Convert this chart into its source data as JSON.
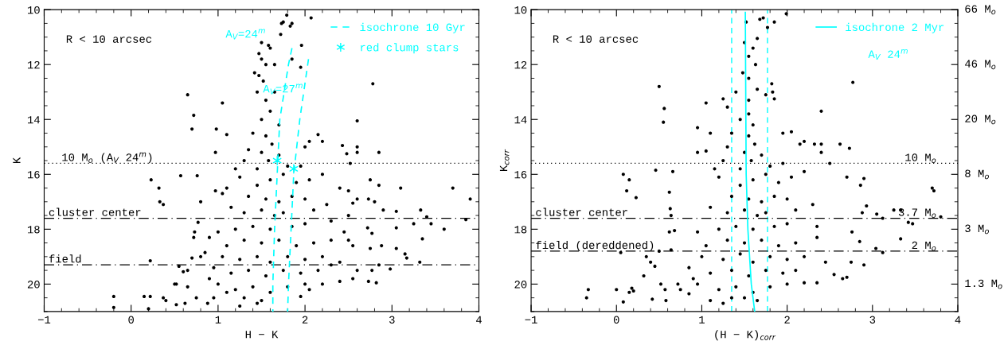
{
  "chart_data": [
    {
      "type": "scatter",
      "xlabel": "H − K",
      "ylabel": "K",
      "xlim": [
        -1,
        4
      ],
      "ylim": [
        21,
        10
      ],
      "xticks": [
        -1,
        0,
        1,
        2,
        3,
        4
      ],
      "yticks": [
        10,
        12,
        14,
        16,
        18,
        20
      ],
      "grid": false,
      "legend": "top right",
      "series": [
        {
          "type": "scatter",
          "color": "#000000",
          "marker": "circle",
          "x": [
            2.07,
            1.75,
            1.73,
            1.85,
            1.79,
            1.83,
            1.72,
            1.5,
            1.58,
            1.96,
            1.6,
            1.85,
            1.95,
            1.47,
            1.5,
            1.55,
            1.65,
            1.42,
            1.47,
            1.52,
            0.65,
            0.72,
            0.7,
            1.05,
            0.98,
            1.1,
            0.97,
            2.78,
            2.6,
            2.6,
            2.6,
            2.85,
            2.43,
            2.48,
            2.52,
            2.0,
            2.05,
            2.15,
            2.2,
            -0.2,
            -0.2,
            0.15,
            0.22,
            0.2,
            0.37,
            0.4,
            0.52,
            0.62,
            0.22,
            0.23,
            0.32,
            0.33,
            0.37,
            0.57,
            0.76,
            0.5,
            0.52,
            0.55,
            0.6,
            0.65,
            0.65,
            0.7,
            0.75,
            0.8,
            0.77,
            0.8,
            0.9,
            0.73,
            0.72,
            0.85,
            0.88,
            0.95,
            0.97,
            1.05,
            1.1,
            3.7,
            3.9,
            3.85,
            3.6,
            3.45,
            3.35,
            3.4,
            3.33,
            3.25,
            3.1,
            3.05,
            3.05,
            3.05,
            2.98,
            3.15,
            3.17,
            3.32,
            2.75,
            2.85,
            2.73,
            2.8,
            2.9,
            2.72,
            2.77,
            2.75,
            2.88,
            2.77,
            2.73,
            2.82,
            2.85,
            2.6,
            2.5,
            2.4,
            2.55,
            2.5,
            2.45,
            2.5,
            2.55,
            2.6,
            2.55,
            2.4,
            2.3,
            2.2,
            2.05,
            1.95,
            1.45,
            1.55,
            1.65,
            1.6,
            1.5,
            1.7,
            1.4,
            1.55,
            1.62,
            1.5,
            1.35,
            1.7,
            1.58,
            1.45,
            1.3,
            1.2,
            1.8,
            1.95,
            1.75,
            1.6,
            1.45,
            1.25,
            1.9,
            2.05,
            2.2,
            1.35,
            1.55,
            1.7,
            1.85,
            2.0,
            1.5,
            1.65,
            1.75,
            1.3,
            1.15,
            2.1,
            2.25,
            1.4,
            1.6,
            1.85,
            2.0,
            2.3,
            1.2,
            1.0,
            1.1,
            1.3,
            1.5,
            1.7,
            1.9,
            2.1,
            2.3,
            1.05,
            1.25,
            1.45,
            1.6,
            1.8,
            2.0,
            2.2,
            2.4,
            0.95,
            1.15,
            1.35,
            1.55,
            1.75,
            1.95,
            2.15,
            1.0,
            1.2,
            1.4,
            1.6,
            1.8,
            2.0,
            1.3,
            1.5,
            1.45,
            1.25,
            1.1,
            0.9
          ],
          "values": [
            10.3,
            10.45,
            10.5,
            10.5,
            10.2,
            10.6,
            10.9,
            11.2,
            11.3,
            11.3,
            11.4,
            11.8,
            12.1,
            11.6,
            11.8,
            12.0,
            12.0,
            12.3,
            12.4,
            12.6,
            13.1,
            13.85,
            14.35,
            13.4,
            14.35,
            14.55,
            15.2,
            12.7,
            14.05,
            15.0,
            15.2,
            15.2,
            14.95,
            15.25,
            15.6,
            15.0,
            14.8,
            14.55,
            14.8,
            20.45,
            20.85,
            20.45,
            20.45,
            20.9,
            20.5,
            20.6,
            20.75,
            20.7,
            19.15,
            16.2,
            16.5,
            17.0,
            17.1,
            16.05,
            16.05,
            20.0,
            20.0,
            19.35,
            19.55,
            19.5,
            20.1,
            19.05,
            20.5,
            19.0,
            17.75,
            17.0,
            18.3,
            18.1,
            18.3,
            18.85,
            20.7,
            20.5,
            16.6,
            16.7,
            16.5,
            16.5,
            16.9,
            17.65,
            18.0,
            17.8,
            18.35,
            17.55,
            17.3,
            17.8,
            16.5,
            17.95,
            17.35,
            18.7,
            19.45,
            18.9,
            19.05,
            19.2,
            16.2,
            16.4,
            16.9,
            17.0,
            17.3,
            17.95,
            18.15,
            18.7,
            18.6,
            19.5,
            19.9,
            19.95,
            19.3,
            16.9,
            16.6,
            16.5,
            17.05,
            17.5,
            18.1,
            18.4,
            18.6,
            19.5,
            19.8,
            19.9,
            19.3,
            20.0,
            20.2,
            20.45,
            13.0,
            13.3,
            13.0,
            13.7,
            14.0,
            14.2,
            14.5,
            14.6,
            14.9,
            15.2,
            15.1,
            15.3,
            15.5,
            15.8,
            15.5,
            15.8,
            15.7,
            15.7,
            16.0,
            16.2,
            16.4,
            16.1,
            16.3,
            16.2,
            16.0,
            16.8,
            16.9,
            17.0,
            16.8,
            16.9,
            17.3,
            17.5,
            17.4,
            17.4,
            17.2,
            17.3,
            17.1,
            17.9,
            18.0,
            17.9,
            17.8,
            17.7,
            18.0,
            18.1,
            18.6,
            18.4,
            18.5,
            18.4,
            18.6,
            18.5,
            18.4,
            19.0,
            19.1,
            19.0,
            19.2,
            19.0,
            19.1,
            19.0,
            19.2,
            19.4,
            19.6,
            19.5,
            19.7,
            19.5,
            19.6,
            19.5,
            20.0,
            20.2,
            20.1,
            20.3,
            20.1,
            20.0,
            20.5,
            20.6,
            20.7,
            20.8,
            20.3,
            19.8
          ]
        },
        {
          "type": "line",
          "name": "isochrone 10 Gyr",
          "color": "#00ffff",
          "line_style": "dashed",
          "x": [
            1.85,
            1.81,
            1.71,
            1.68,
            1.65,
            1.63,
            1.63
          ],
          "values": [
            11.4,
            12,
            14,
            16,
            18,
            20,
            21
          ]
        },
        {
          "type": "line",
          "color": "#00ffff",
          "line_style": "dashed",
          "x": [
            2.04,
            1.94,
            1.87,
            1.84,
            1.81,
            1.8
          ],
          "values": [
            11.8,
            14,
            16,
            18,
            20,
            21
          ]
        },
        {
          "type": "scatter",
          "name": "red clump stars",
          "color": "#00ffff",
          "marker": "cross",
          "x": [
            1.68,
            1.87
          ],
          "values": [
            15.5,
            15.8
          ]
        }
      ],
      "ref_lines": [
        {
          "axis": "y",
          "value": 15.6,
          "color": "#000000",
          "line_style": "dotted"
        },
        {
          "axis": "y",
          "value": 17.6,
          "color": "#000000",
          "line_style": "dashdot"
        },
        {
          "axis": "y",
          "value": 19.3,
          "color": "#000000",
          "line_style": "dashdot"
        }
      ],
      "annotations": [
        "R < 10 arcsec",
        {
          "text": "A$_{V}$=24$^{m}$",
          "x": 1.55,
          "y": 11.1
        },
        {
          "text": "A$_{V}$=27$^{m}$",
          "x": 1.98,
          "y": 13.1
        },
        {
          "text": "10 M$_{o}$ (A$_{V}$ 24$^{m}$)",
          "x": -0.8,
          "y": 15.6
        },
        {
          "text": "cluster center",
          "x": -0.95,
          "y": 17.6
        },
        {
          "text": "field",
          "x": -0.95,
          "y": 19.3
        }
      ]
    },
    {
      "type": "scatter",
      "xlabel": "(H − K)$_{corr}$",
      "ylabel": "K$_{corr}$",
      "xlim": [
        -1,
        4
      ],
      "ylim": [
        21,
        10
      ],
      "xticks": [
        -1,
        0,
        1,
        2,
        3,
        4
      ],
      "yticks": [
        10,
        12,
        14,
        16,
        18,
        20
      ],
      "grid": false,
      "legend": "top right",
      "series": [
        {
          "type": "scatter",
          "color": "#000000",
          "marker": "circle",
          "x": [
            1.99,
            1.85,
            1.72,
            1.68,
            1.77,
            1.52,
            1.65,
            1.5,
            1.55,
            1.6,
            1.48,
            1.55,
            1.63,
            1.82,
            1.83,
            1.75,
            1.85,
            2.77,
            0.5,
            0.56,
            0.55,
            1.05,
            1.1,
            0.95,
            0.95,
            1.05,
            1.25,
            1.3,
            2.4,
            2.05,
            1.95,
            2.2,
            2.15,
            2.32,
            2.4,
            2.4,
            2.62,
            2.73,
            2.5,
            0.08,
            0.15,
            0.12,
            0.23,
            0.46,
            0.66,
            0.62,
            0.63,
            0.64,
            3.7,
            3.72,
            3.8,
            3.47,
            3.42,
            3.33,
            3.25,
            3.33,
            3.12,
            3.05,
            3.04,
            3.12,
            2.93,
            2.9,
            2.86,
            2.7,
            2.88,
            2.76,
            2.85,
            2.9,
            2.75,
            2.7,
            2.65,
            2.55,
            2.35,
            2.2,
            0.05,
            0.0,
            -0.33,
            -0.35,
            0.08,
            0.18,
            0.15,
            0.2,
            0.32,
            0.42,
            0.58,
            0.52,
            0.57,
            0.62,
            0.68,
            0.64,
            0.5,
            0.35,
            0.4,
            0.45,
            0.72,
            0.75,
            0.85,
            1.1,
            1.4,
            1.55,
            1.65,
            1.55,
            1.45,
            1.6,
            1.35,
            1.55,
            1.62,
            1.5,
            1.3,
            1.7,
            1.58,
            1.45,
            1.25,
            1.15,
            1.8,
            1.95,
            1.75,
            1.6,
            1.45,
            1.2,
            1.9,
            2.05,
            2.2,
            1.35,
            1.55,
            1.7,
            1.85,
            2.0,
            1.5,
            1.65,
            1.75,
            1.3,
            1.1,
            2.1,
            2.3,
            1.4,
            1.6,
            1.85,
            2.0,
            2.35,
            1.2,
            0.95,
            1.05,
            1.3,
            1.5,
            1.7,
            1.9,
            2.1,
            2.35,
            1.0,
            1.25,
            1.45,
            1.6,
            1.8,
            2.0,
            2.2,
            2.45,
            0.85,
            1.1,
            1.35,
            1.55,
            1.75,
            1.95,
            2.1,
            0.95,
            1.2,
            1.4,
            1.6,
            1.8,
            2.0,
            1.35,
            1.5,
            1.65,
            1.25,
            0.9
          ],
          "values": [
            10.15,
            10.45,
            10.3,
            10.35,
            10.65,
            10.45,
            11.05,
            11.2,
            11.7,
            11.4,
            12.3,
            12.5,
            12.0,
            12.7,
            13.0,
            13.1,
            13.25,
            12.65,
            12.8,
            13.6,
            14.1,
            13.4,
            14.5,
            14.3,
            15.2,
            15.15,
            13.25,
            13.55,
            13.7,
            14.45,
            14.5,
            14.8,
            14.9,
            14.9,
            14.9,
            15.2,
            14.9,
            15.05,
            15.6,
            16.0,
            16.2,
            16.6,
            16.85,
            15.85,
            15.9,
            16.65,
            17.25,
            17.5,
            16.5,
            16.6,
            17.55,
            17.8,
            17.75,
            17.3,
            17.3,
            18.35,
            17.6,
            17.45,
            18.7,
            18.85,
            17.15,
            16.15,
            16.4,
            16.1,
            17.4,
            18.1,
            18.45,
            19.3,
            19.2,
            19.75,
            19.8,
            19.65,
            19.95,
            19.95,
            18.85,
            20.2,
            20.2,
            20.5,
            20.65,
            20.15,
            20.3,
            20.25,
            19.7,
            20.55,
            20.6,
            20.0,
            20.2,
            18.1,
            18.05,
            18.75,
            18.8,
            19.0,
            19.2,
            19.35,
            20.0,
            20.2,
            20.35,
            20.6,
            13.0,
            13.3,
            12.9,
            13.8,
            14.0,
            14.2,
            14.5,
            14.6,
            14.9,
            15.2,
            15.0,
            15.3,
            15.5,
            15.8,
            15.5,
            15.8,
            15.7,
            15.6,
            16.0,
            16.2,
            16.4,
            16.1,
            16.3,
            16.1,
            15.9,
            16.8,
            16.9,
            17.0,
            16.8,
            16.9,
            17.3,
            17.5,
            17.4,
            17.4,
            17.2,
            17.3,
            17.1,
            17.9,
            18.0,
            17.9,
            17.8,
            17.9,
            18.0,
            18.1,
            18.6,
            18.4,
            18.5,
            18.4,
            18.6,
            18.5,
            18.3,
            19.0,
            19.1,
            18.9,
            19.2,
            19.0,
            19.1,
            19.0,
            19.2,
            19.4,
            19.6,
            19.5,
            19.7,
            19.5,
            19.6,
            19.5,
            20.0,
            20.2,
            20.1,
            20.3,
            20.1,
            20.0,
            20.5,
            20.5,
            20.6,
            20.7,
            19.8
          ]
        },
        {
          "type": "line",
          "name": "isochrone 2 Myr",
          "color": "#00ffff",
          "line_style": "solid",
          "x": [
            1.51,
            1.52,
            1.54,
            1.58,
            1.62
          ],
          "values": [
            10.1,
            16,
            18,
            20,
            21
          ]
        }
      ],
      "ref_lines": [
        {
          "axis": "x",
          "value": 1.35,
          "color": "#00ffff",
          "line_style": "dashed"
        },
        {
          "axis": "x",
          "value": 1.77,
          "color": "#00ffff",
          "line_style": "dashed"
        },
        {
          "axis": "y",
          "value": 15.6,
          "color": "#000000",
          "line_style": "dotted"
        },
        {
          "axis": "y",
          "value": 17.6,
          "color": "#000000",
          "line_style": "dashdot"
        },
        {
          "axis": "y",
          "value": 18.8,
          "color": "#000000",
          "line_style": "dashdot"
        }
      ],
      "annotations": [
        "R < 10 arcsec",
        "A$_{V}$ 24$^{m}$",
        {
          "text": "10 M$_{o}$",
          "x": 3.75,
          "y": 15.6
        },
        {
          "text": "cluster center",
          "x": -0.95,
          "y": 17.6
        },
        {
          "text": "3.7 M$_{o}$",
          "x": 3.75,
          "y": 17.6
        },
        {
          "text": "field (dereddened)",
          "x": -0.95,
          "y": 18.8
        },
        {
          "text": "2 M$_{o}$",
          "x": 3.75,
          "y": 18.8
        },
        "66 M$_{o}$",
        "46 M$_{o}$",
        "20 M$_{o}$",
        "8 M$_{o}$",
        "3 M$_{o}$",
        "1.3 M$_{o}$"
      ]
    }
  ]
}
